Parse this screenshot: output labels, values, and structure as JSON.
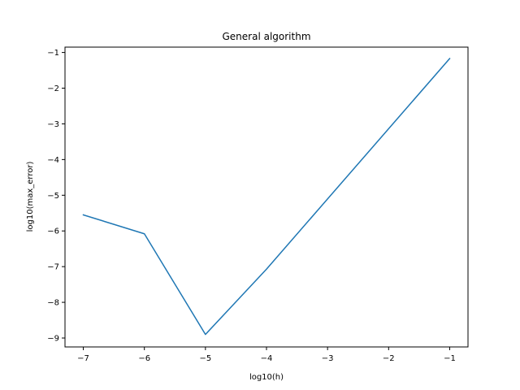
{
  "chart_data": {
    "type": "line",
    "title": "General algorithm",
    "xlabel": "log10(h)",
    "ylabel": "log10(max_error)",
    "xlim": [
      -7.3,
      -0.7
    ],
    "ylim": [
      -9.25,
      -0.85
    ],
    "xticks": [
      -7,
      -6,
      -5,
      -4,
      -3,
      -2,
      -1
    ],
    "yticks": [
      -9,
      -8,
      -7,
      -6,
      -5,
      -4,
      -3,
      -2,
      -1
    ],
    "xtick_labels": [
      "−7",
      "−6",
      "−5",
      "−4",
      "−3",
      "−2",
      "−1"
    ],
    "ytick_labels": [
      "−9",
      "−8",
      "−7",
      "−6",
      "−5",
      "−4",
      "−3",
      "−2",
      "−1"
    ],
    "grid": false,
    "series": [
      {
        "color": "#1f77b4",
        "x": [
          -7,
          -6,
          -5,
          -4,
          -1
        ],
        "y": [
          -5.55,
          -6.08,
          -8.9,
          -7.07,
          -1.17
        ]
      }
    ]
  }
}
